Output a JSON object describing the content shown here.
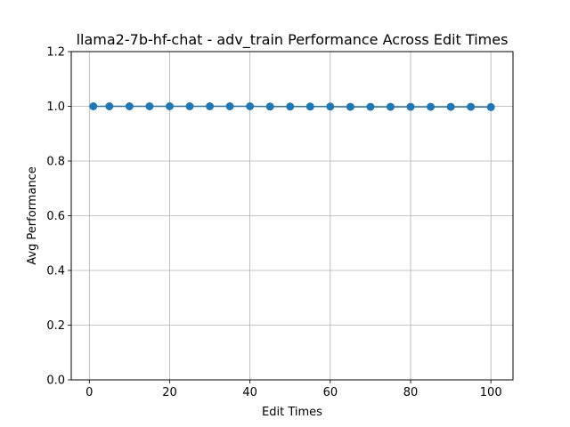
{
  "chart_data": {
    "type": "line",
    "title": "llama2-7b-hf-chat - adv_train Performance Across Edit Times",
    "xlabel": "Edit Times",
    "ylabel": "Avg Performance",
    "xlim": [
      -4.5,
      105.5
    ],
    "ylim": [
      0.0,
      1.2
    ],
    "xticks": [
      0,
      20,
      40,
      60,
      80,
      100
    ],
    "yticks": [
      0.0,
      0.2,
      0.4,
      0.6,
      0.8,
      1.0,
      1.2
    ],
    "xtick_labels": [
      "0",
      "20",
      "40",
      "60",
      "80",
      "100"
    ],
    "ytick_labels": [
      "0.0",
      "0.2",
      "0.4",
      "0.6",
      "0.8",
      "1.0",
      "1.2"
    ],
    "grid": true,
    "color": "#1f77b4",
    "x": [
      1,
      5,
      10,
      15,
      20,
      25,
      30,
      35,
      40,
      45,
      50,
      55,
      60,
      65,
      70,
      75,
      80,
      85,
      90,
      95,
      100
    ],
    "y": [
      1.0,
      1.0,
      1.0,
      1.0,
      1.0,
      1.0,
      1.0,
      1.0,
      1.0,
      0.999,
      0.999,
      0.999,
      0.999,
      0.998,
      0.998,
      0.998,
      0.998,
      0.998,
      0.998,
      0.998,
      0.997
    ]
  }
}
